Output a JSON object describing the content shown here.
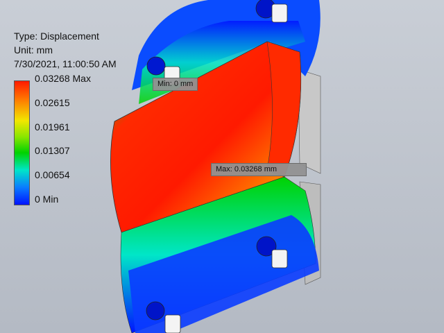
{
  "plot_info": {
    "type": "Type: Displacement",
    "unit": "Unit: mm",
    "timestamp": "7/30/2021, 11:00:50 AM"
  },
  "legend": {
    "labels": [
      "0.03268 Max",
      "0.02615",
      "0.01961",
      "0.01307",
      "0.00654",
      "0 Min"
    ]
  },
  "probes": {
    "min_label": "Min: 0 mm",
    "max_label": "Max: 0.03268 mm"
  },
  "colors": {
    "max": "#ff1a00",
    "min": "#0014ff"
  }
}
